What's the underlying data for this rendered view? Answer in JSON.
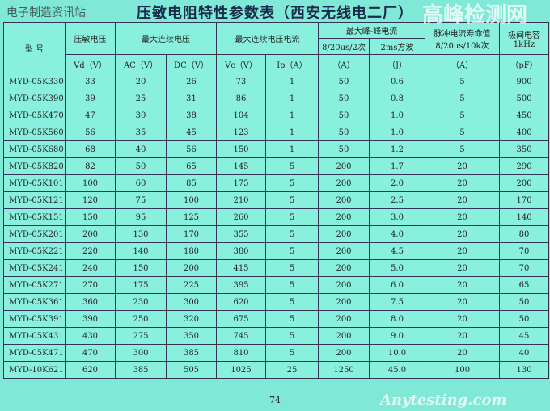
{
  "title": "压敏电阻特性参数表（西安无线电二厂）",
  "header": {
    "model": "型 号",
    "vd": "压敏电压",
    "max_cont_voltage": "最大连续电压",
    "max_cont_current": "最大连续电压电流",
    "peak_current": "最大峰-峰电流",
    "peak_8_20": "8/20us/2次",
    "peak_2ms": "2ms方波",
    "pulse_life": "脉冲电流寿命值 8/20us/10k次",
    "capacitance": "极间电容 1kHz"
  },
  "units": [
    "Vd（V）",
    "AC（V）",
    "DC（V）",
    "Vc（V）",
    "Ip（A）",
    "（A）",
    "（J）",
    "（A）",
    "（pF）"
  ],
  "rows": [
    [
      "MYD-05K330",
      "33",
      "20",
      "26",
      "73",
      "1",
      "50",
      "0.6",
      "5",
      "900"
    ],
    [
      "MYD-05K390",
      "39",
      "25",
      "31",
      "86",
      "1",
      "50",
      "0.8",
      "5",
      "500"
    ],
    [
      "MYD-05K470",
      "47",
      "30",
      "38",
      "104",
      "1",
      "50",
      "1.0",
      "5",
      "450"
    ],
    [
      "MYD-05K560",
      "56",
      "35",
      "45",
      "123",
      "1",
      "50",
      "1.0",
      "5",
      "400"
    ],
    [
      "MYD-05K680",
      "68",
      "40",
      "56",
      "150",
      "1",
      "50",
      "1.2",
      "5",
      "350"
    ],
    [
      "MYD-05K820",
      "82",
      "50",
      "65",
      "145",
      "5",
      "200",
      "1.7",
      "20",
      "290"
    ],
    [
      "MYD-05K101",
      "100",
      "60",
      "85",
      "175",
      "5",
      "200",
      "2.0",
      "20",
      "200"
    ],
    [
      "MYD-05K121",
      "120",
      "75",
      "100",
      "210",
      "5",
      "200",
      "2.5",
      "20",
      "170"
    ],
    [
      "MYD-05K151",
      "150",
      "95",
      "125",
      "260",
      "5",
      "200",
      "3.0",
      "20",
      "140"
    ],
    [
      "MYD-05K201",
      "200",
      "130",
      "170",
      "355",
      "5",
      "200",
      "4.0",
      "20",
      "80"
    ],
    [
      "MYD-05K221",
      "220",
      "140",
      "180",
      "380",
      "5",
      "200",
      "4.5",
      "20",
      "70"
    ],
    [
      "MYD-05K241",
      "240",
      "150",
      "200",
      "415",
      "5",
      "200",
      "5.0",
      "20",
      "70"
    ],
    [
      "MYD-05K271",
      "270",
      "175",
      "225",
      "395",
      "5",
      "200",
      "6.0",
      "20",
      "65"
    ],
    [
      "MYD-05K361",
      "360",
      "230",
      "300",
      "620",
      "5",
      "200",
      "7.5",
      "20",
      "50"
    ],
    [
      "MYD-05K391",
      "390",
      "250",
      "320",
      "675",
      "5",
      "200",
      "8.0",
      "20",
      "50"
    ],
    [
      "MYD-05K431",
      "430",
      "275",
      "350",
      "745",
      "5",
      "200",
      "9.0",
      "20",
      "45"
    ],
    [
      "MYD-05K471",
      "470",
      "300",
      "385",
      "810",
      "5",
      "200",
      "10.0",
      "20",
      "40"
    ],
    [
      "MYD-10K621",
      "620",
      "385",
      "505",
      "1025",
      "25",
      "1250",
      "45.0",
      "100",
      "130"
    ]
  ],
  "page_number": "74",
  "watermark": {
    "site": "高峰检测网",
    "channel": "电子制造资讯站",
    "domain": "Anytesting.com"
  }
}
